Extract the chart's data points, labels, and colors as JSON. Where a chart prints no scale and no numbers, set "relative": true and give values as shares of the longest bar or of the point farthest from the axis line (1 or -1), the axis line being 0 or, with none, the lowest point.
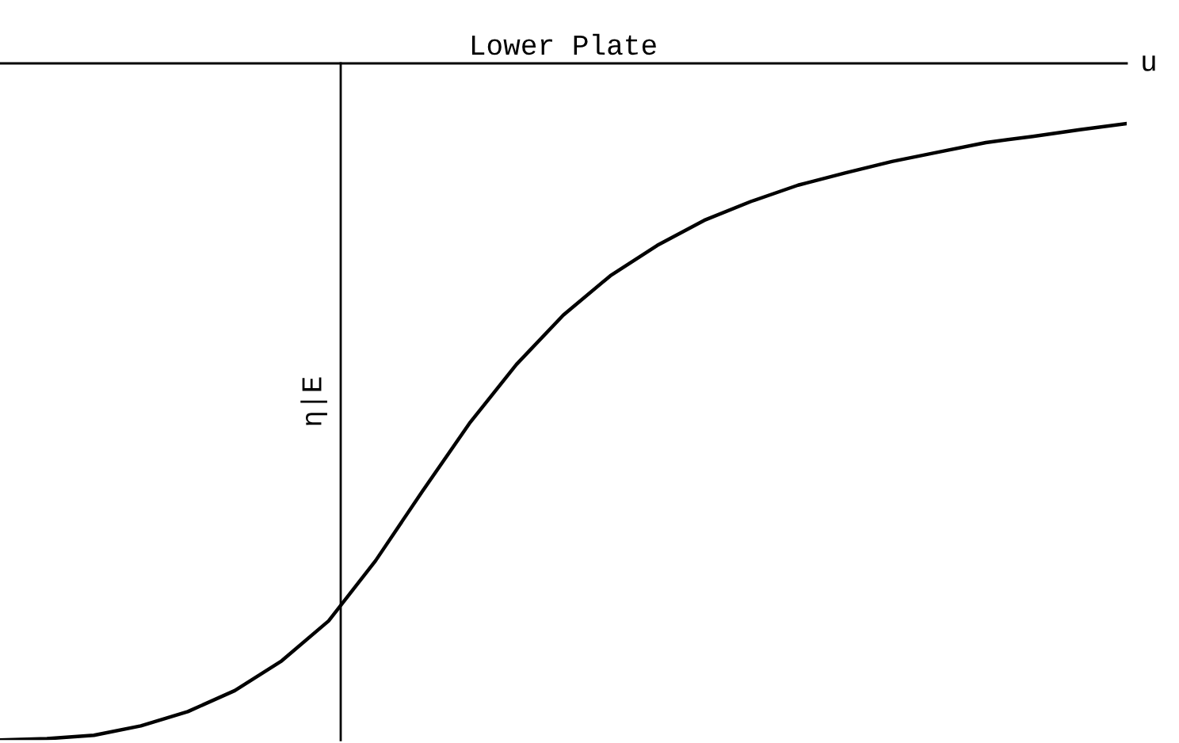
{
  "chart_data": {
    "type": "line",
    "relative": true,
    "title": "Lower Plate",
    "xlabel": "u",
    "ylabel": "η|E",
    "categories": [
      null,
      null,
      null,
      null,
      null,
      null,
      null,
      null,
      null,
      null,
      null,
      null,
      null,
      null,
      null,
      null,
      null,
      null,
      null,
      null,
      null,
      null,
      null,
      null,
      null
    ],
    "series": [
      {
        "color": "#000000",
        "values": [
          -1.0,
          -0.998,
          -0.993,
          -0.979,
          -0.958,
          -0.927,
          -0.883,
          -0.824,
          -0.735,
          -0.632,
          -0.532,
          -0.445,
          -0.372,
          -0.314,
          -0.269,
          -0.232,
          -0.204,
          -0.18,
          -0.162,
          -0.145,
          -0.131,
          -0.117,
          -0.108,
          -0.098,
          -0.089
        ]
      }
    ],
    "legend": false
  }
}
